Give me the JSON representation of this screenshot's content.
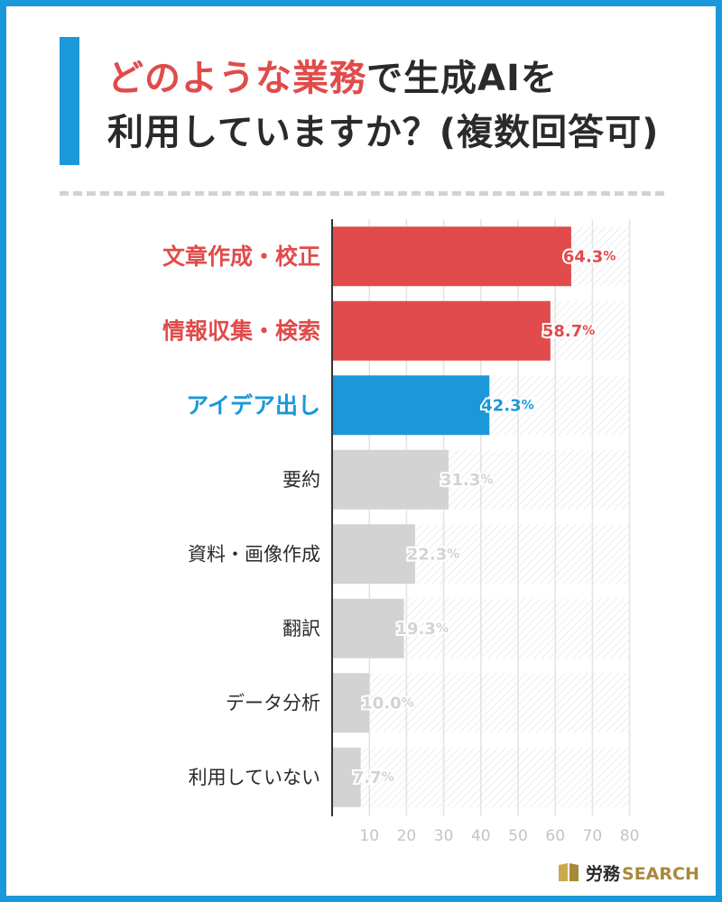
{
  "title": {
    "highlight": "どのような業務",
    "line1_rest": "で生成AIを",
    "line2": "利用していますか？(複数回答可)"
  },
  "colors": {
    "frame": "#1a98d9",
    "red": "#e14b4b",
    "blue": "#1a98d9",
    "gray_bar": "#d3d3d3",
    "gray_text": "#2a2a2a"
  },
  "chart_data": {
    "type": "bar",
    "orientation": "horizontal",
    "categories": [
      "文章作成・校正",
      "情報収集・検索",
      "アイデア出し",
      "要約",
      "資料・画像作成",
      "翻訳",
      "データ分析",
      "利用していない"
    ],
    "values": [
      64.3,
      58.7,
      42.3,
      31.3,
      22.3,
      19.3,
      10.0,
      7.7
    ],
    "value_labels": [
      "64.3",
      "58.7",
      "42.3",
      "31.3",
      "22.3",
      "19.3",
      "10.0",
      "7.7"
    ],
    "unit": "%",
    "bar_colors": [
      "red",
      "red",
      "blue",
      "gray",
      "gray",
      "gray",
      "gray",
      "gray"
    ],
    "xlim": [
      0,
      80
    ],
    "x_ticks": [
      "10",
      "20",
      "30",
      "40",
      "50",
      "60",
      "70",
      "80"
    ],
    "grid": true
  },
  "logo": {
    "name_ja": "労務",
    "name_en": "SEARCH",
    "icon": "book-icon"
  }
}
